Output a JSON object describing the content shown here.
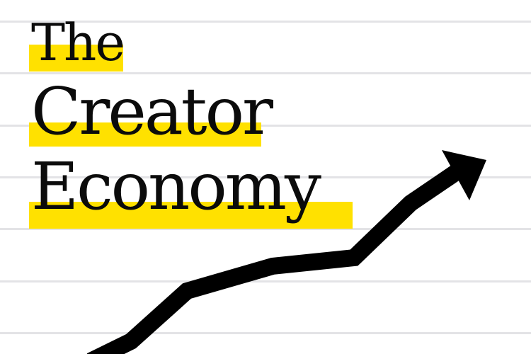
{
  "title": {
    "line1": "The",
    "line2": "Creator",
    "line3": "Economy"
  },
  "colors": {
    "background": "#ffffff",
    "ruled_line": "#e3e3e6",
    "highlight": "#ffe100",
    "text": "#0b0b0b",
    "arrow": "#000000"
  },
  "graphics": {
    "arrow": "upward-trend-arrow",
    "background": "ruled-paper-lines"
  }
}
